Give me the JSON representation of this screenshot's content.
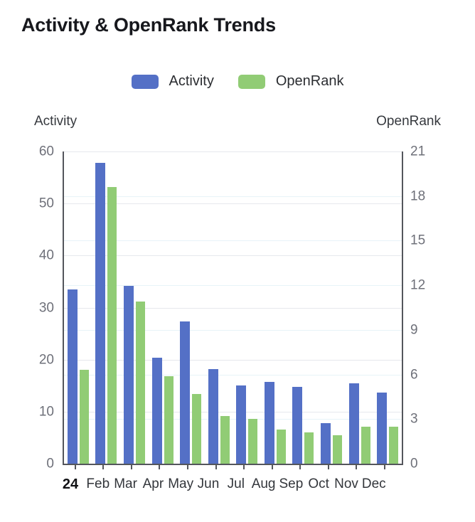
{
  "chart_data": {
    "type": "bar",
    "title": "Activity & OpenRank Trends",
    "categories": [
      "24",
      "Feb",
      "Mar",
      "Apr",
      "May",
      "Jun",
      "Jul",
      "Aug",
      "Sep",
      "Oct",
      "Nov",
      "Dec"
    ],
    "series": [
      {
        "name": "Activity",
        "yaxis": "left",
        "color": "#5470C6",
        "values": [
          33.5,
          57.8,
          34.2,
          20.4,
          27.3,
          18.2,
          15.1,
          15.7,
          14.7,
          7.8,
          15.4,
          13.7
        ]
      },
      {
        "name": "OpenRank",
        "yaxis": "right",
        "color": "#91CC75",
        "values": [
          6.3,
          18.6,
          10.9,
          5.9,
          4.7,
          3.2,
          3.0,
          2.3,
          2.1,
          1.9,
          2.5,
          2.5
        ]
      }
    ],
    "left_axis": {
      "name": "Activity",
      "min": 0,
      "max": 60,
      "ticks": [
        0,
        10,
        20,
        30,
        40,
        50,
        60
      ]
    },
    "right_axis": {
      "name": "OpenRank",
      "min": 0,
      "max": 21,
      "ticks": [
        0,
        3,
        6,
        9,
        12,
        15,
        18,
        21
      ]
    },
    "legend_position": "top",
    "grid": true
  }
}
